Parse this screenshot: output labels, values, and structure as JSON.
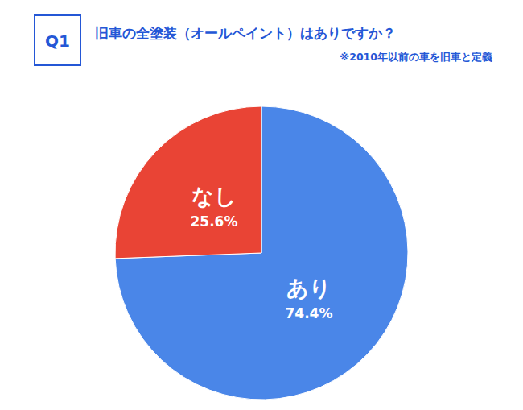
{
  "chart_data": {
    "type": "pie",
    "title": "旧車の全塗装（オールペイント）はありですか？",
    "subtitle": "※2010年以前の車を旧車と定義",
    "annotations": [
      "Q1"
    ],
    "categories": [
      "あり",
      "なし"
    ],
    "values": [
      74.4,
      25.6
    ],
    "value_labels": [
      "74.4%",
      "25.6%"
    ],
    "colors": [
      "#4a86e8",
      "#e94435"
    ],
    "data_labels": true
  }
}
